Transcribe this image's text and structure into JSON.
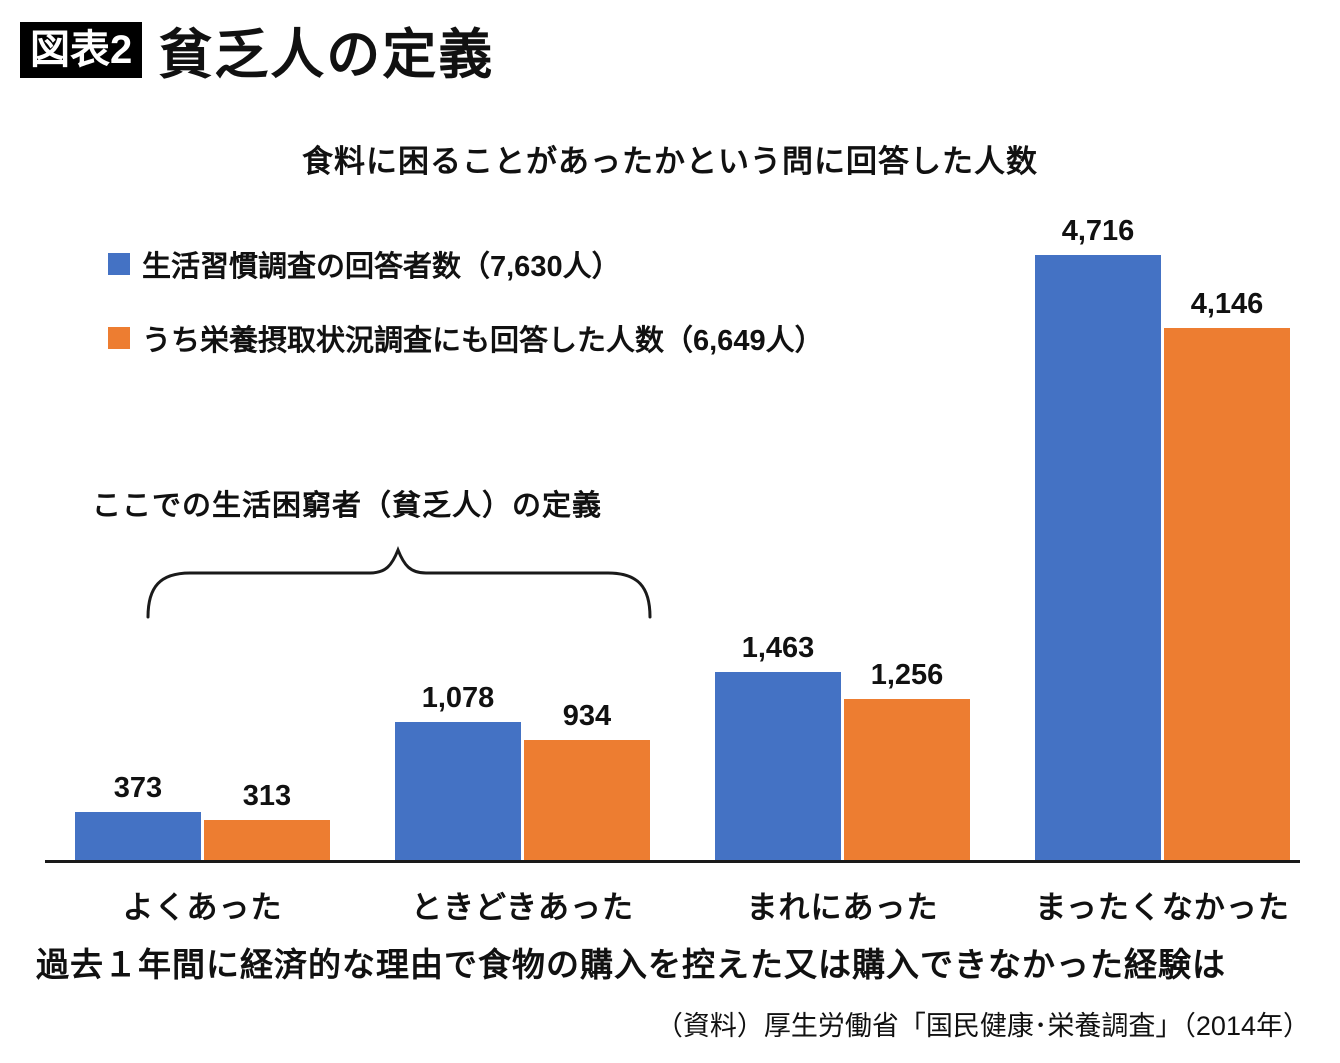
{
  "header": {
    "tag": "図表2",
    "title": "貧乏人の定義"
  },
  "chart_data": {
    "type": "bar",
    "title": "食料に困ることがあったかという問に回答した人数",
    "categories": [
      "よくあった",
      "ときどきあった",
      "まれにあった",
      "まったくなかった"
    ],
    "series": [
      {
        "name": "生活習慣調査の回答者数（7,630人）",
        "color": "#4472C4",
        "values": [
          373,
          1078,
          1463,
          4716
        ],
        "labels": [
          "373",
          "1,078",
          "1,463",
          "4,716"
        ]
      },
      {
        "name": "うち栄養摂取状況調査にも回答した人数（6,649人）",
        "color": "#ED7D31",
        "values": [
          313,
          934,
          1256,
          4146
        ],
        "labels": [
          "313",
          "934",
          "1,256",
          "4,146"
        ]
      }
    ],
    "ylim": [
      0,
      4716
    ],
    "grid": false,
    "legend_position": "top-left",
    "annotation": "ここでの生活困窮者（貧乏人）の定義",
    "xlabel": "過去１年間に経済的な理由で食物の購入を控えた又は購入できなかった経験は"
  },
  "source": "（資料）厚生労働省「国民健康･栄養調査」（2014年）"
}
